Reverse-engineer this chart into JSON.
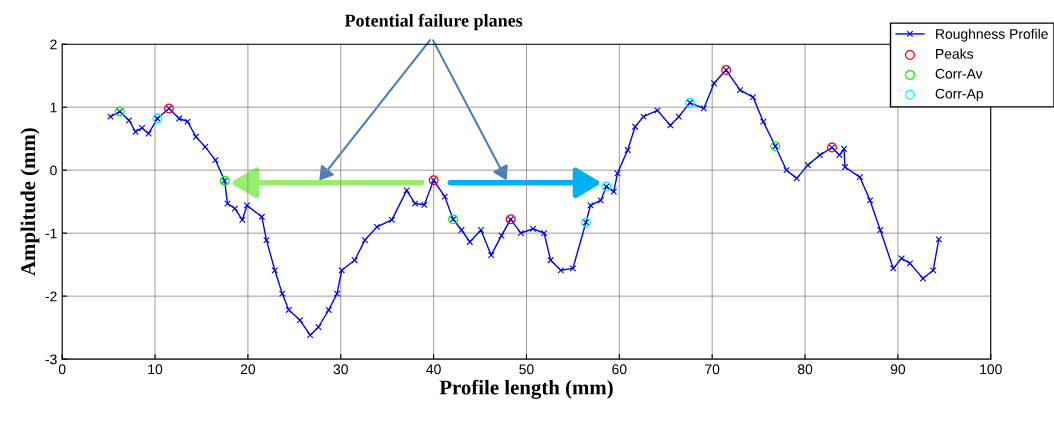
{
  "chart_data": {
    "type": "line",
    "xlabel": "Profile length (mm)",
    "ylabel": "Amplitude (mm)",
    "annotations": [
      "Potential failure planes"
    ],
    "series": [
      {
        "name": "Roughness Profile",
        "color": "#0000ff",
        "marker": "cross",
        "x": [
          5.2,
          6.2,
          7.2,
          7.9,
          8.6,
          9.3,
          10.25,
          11.5,
          12.6,
          13.5,
          14.4,
          15.4,
          16.5,
          17.5,
          17.8,
          18.6,
          19.4,
          19.9,
          21.5,
          22.0,
          22.9,
          23.7,
          24.4,
          25.6,
          26.7,
          27.6,
          28.7,
          29.6,
          30.1,
          31.5,
          32.6,
          33.9,
          35.5,
          37.1,
          38.0,
          39.0,
          40.0,
          41.2,
          42.1,
          43.0,
          43.9,
          45.1,
          46.2,
          47.3,
          48.3,
          49.4,
          50.7,
          51.9,
          52.6,
          53.7,
          55.0,
          56.4,
          56.9,
          58.0,
          58.6,
          59.4,
          59.8,
          60.9,
          61.7,
          62.6,
          64.1,
          65.5,
          66.4,
          67.6,
          69.1,
          70.2,
          71.5,
          73.0,
          74.4,
          75.5,
          76.8,
          78.0,
          79.1,
          80.3,
          81.6,
          82.9,
          83.7,
          84.2,
          84.3,
          85.9,
          87.0,
          88.1,
          89.5,
          90.4,
          91.3,
          92.7,
          93.8,
          94.4
        ],
        "values": [
          0.85,
          0.93,
          0.79,
          0.61,
          0.67,
          0.58,
          0.82,
          0.98,
          0.82,
          0.77,
          0.53,
          0.37,
          0.16,
          -0.17,
          -0.53,
          -0.61,
          -0.79,
          -0.56,
          -0.74,
          -1.11,
          -1.59,
          -1.96,
          -2.22,
          -2.38,
          -2.62,
          -2.49,
          -2.22,
          -1.96,
          -1.59,
          -1.43,
          -1.11,
          -0.9,
          -0.79,
          -0.32,
          -0.53,
          -0.55,
          -0.16,
          -0.42,
          -0.78,
          -0.95,
          -1.14,
          -0.95,
          -1.35,
          -1.04,
          -0.78,
          -1.0,
          -0.93,
          -1.0,
          -1.43,
          -1.59,
          -1.56,
          -0.83,
          -0.56,
          -0.48,
          -0.26,
          -0.34,
          -0.05,
          0.32,
          0.69,
          0.85,
          0.95,
          0.71,
          0.85,
          1.07,
          0.98,
          1.38,
          1.59,
          1.27,
          1.16,
          0.77,
          0.38,
          0.0,
          -0.13,
          0.08,
          0.24,
          0.36,
          0.24,
          0.34,
          0.05,
          -0.11,
          -0.48,
          -0.95,
          -1.56,
          -1.4,
          -1.48,
          -1.72,
          -1.59,
          -1.1
        ]
      },
      {
        "name": "Peaks",
        "type": "scatter",
        "color": "#ff0000",
        "marker": "circle",
        "x": [
          11.5,
          40.0,
          48.3,
          71.5,
          82.9
        ],
        "values": [
          0.98,
          -0.16,
          -0.78,
          1.59,
          0.36
        ]
      },
      {
        "name": "Corr-Av",
        "type": "scatter",
        "color": "#00ff00",
        "marker": "circle",
        "x": [
          6.2,
          17.5,
          42.1,
          76.8
        ],
        "values": [
          0.93,
          -0.17,
          -0.78,
          0.38
        ]
      },
      {
        "name": "Corr-Ap",
        "type": "scatter",
        "color": "#00ffff",
        "marker": "circle",
        "x": [
          10.25,
          56.4,
          58.6,
          67.6
        ],
        "values": [
          0.82,
          -0.83,
          -0.26,
          1.07
        ]
      }
    ],
    "xlim": [
      0,
      100
    ],
    "xticks": [
      0,
      10,
      20,
      30,
      40,
      50,
      60,
      70,
      80,
      90,
      100
    ],
    "ylim": [
      -3,
      2
    ],
    "yticks": [
      -3,
      -2,
      -1,
      0,
      1,
      2
    ],
    "grid": true,
    "legend": "top right"
  }
}
